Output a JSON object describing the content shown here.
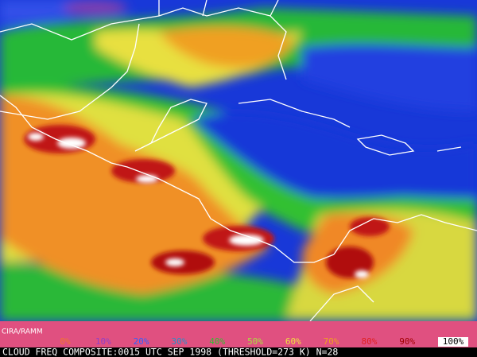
{
  "logo": "CIRA/RAMM",
  "legend": [
    {
      "label": "0%",
      "color": "#f07828"
    },
    {
      "label": "10%",
      "color": "#9040c8"
    },
    {
      "label": "20%",
      "color": "#3060ff"
    },
    {
      "label": "30%",
      "color": "#2890c8"
    },
    {
      "label": "40%",
      "color": "#30c030"
    },
    {
      "label": "50%",
      "color": "#a8e040"
    },
    {
      "label": "60%",
      "color": "#f0e040"
    },
    {
      "label": "70%",
      "color": "#f0a020"
    },
    {
      "label": "80%",
      "color": "#e02020"
    },
    {
      "label": "90%",
      "color": "#a00000"
    },
    {
      "label": "100%",
      "color": "#000000",
      "background": "#ffffff"
    }
  ],
  "caption": "CLOUD FREQ COMPOSITE:0015 UTC SEP 1998 (THRESHOLD=273 K) N=28"
}
